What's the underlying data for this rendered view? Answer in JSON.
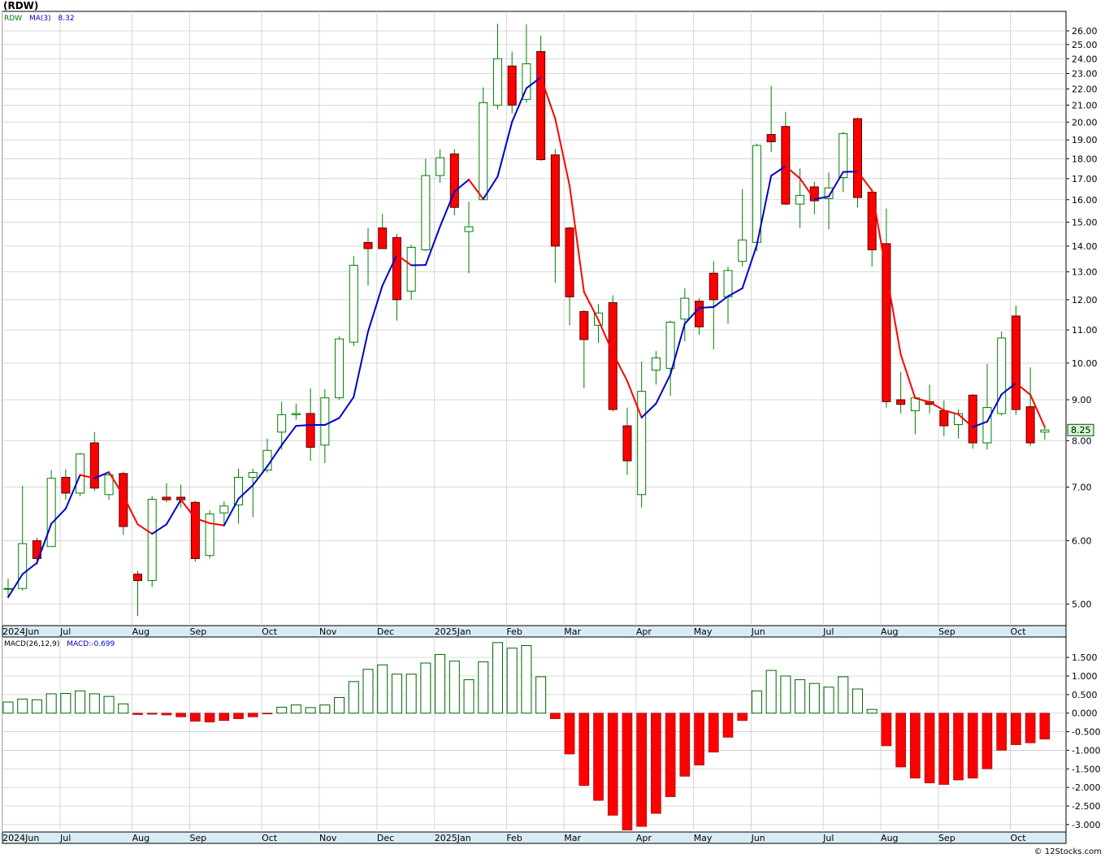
{
  "chart_data": [
    {
      "type": "candlestick",
      "title": "(RDW)",
      "legend": [
        {
          "text": "RDW",
          "color": "#008000"
        },
        {
          "text": "MA(3)",
          "color": "#0000cc"
        },
        {
          "text": "8.32",
          "color": "#0000cc"
        }
      ],
      "scale": "log",
      "ylim": [
        4.7,
        27.5
      ],
      "ticks": [
        5,
        6,
        7,
        8,
        9,
        10,
        11,
        12,
        13,
        14,
        15,
        16,
        17,
        18,
        19,
        20,
        21,
        22,
        23,
        24,
        25,
        26
      ],
      "tick_labels": [
        "5.00",
        "6.00",
        "7.00",
        "8.00",
        "9.00",
        "10.00",
        "11.00",
        "12.00",
        "13.00",
        "14.00",
        "15.00",
        "16.00",
        "17.00",
        "18.00",
        "19.00",
        "20.00",
        "21.00",
        "22.00",
        "23.00",
        "24.00",
        "25.00",
        "26.00"
      ],
      "last_price_label": "8.25",
      "grid": true,
      "candles": [
        {
          "date": "2024-06-03",
          "o": 5.22,
          "h": 5.38,
          "l": 5.12,
          "c": 5.23
        },
        {
          "date": "2024-06-10",
          "o": 5.23,
          "h": 7.02,
          "l": 5.2,
          "c": 5.95
        },
        {
          "date": "2024-06-17",
          "o": 6.0,
          "h": 6.05,
          "l": 5.6,
          "c": 5.7
        },
        {
          "date": "2024-06-24",
          "o": 5.9,
          "h": 7.35,
          "l": 5.9,
          "c": 7.18
        },
        {
          "date": "2024-07-01",
          "o": 7.2,
          "h": 7.37,
          "l": 6.75,
          "c": 6.88
        },
        {
          "date": "2024-07-08",
          "o": 6.88,
          "h": 7.72,
          "l": 6.82,
          "c": 7.7
        },
        {
          "date": "2024-07-15",
          "o": 7.95,
          "h": 8.2,
          "l": 6.92,
          "c": 6.98
        },
        {
          "date": "2024-07-22",
          "o": 6.85,
          "h": 7.3,
          "l": 6.75,
          "c": 7.25
        },
        {
          "date": "2024-07-29",
          "o": 7.28,
          "h": 7.32,
          "l": 6.1,
          "c": 6.25
        },
        {
          "date": "2024-08-05",
          "o": 5.45,
          "h": 5.5,
          "l": 4.83,
          "c": 5.35
        },
        {
          "date": "2024-08-12",
          "o": 5.35,
          "h": 6.82,
          "l": 5.25,
          "c": 6.76
        },
        {
          "date": "2024-08-19",
          "o": 6.8,
          "h": 7.08,
          "l": 6.7,
          "c": 6.75
        },
        {
          "date": "2024-08-26",
          "o": 6.8,
          "h": 7.05,
          "l": 6.6,
          "c": 6.75
        },
        {
          "date": "2024-09-02",
          "o": 6.7,
          "h": 6.73,
          "l": 5.65,
          "c": 5.7
        },
        {
          "date": "2024-09-09",
          "o": 5.75,
          "h": 6.55,
          "l": 5.7,
          "c": 6.48
        },
        {
          "date": "2024-09-16",
          "o": 6.5,
          "h": 6.72,
          "l": 6.25,
          "c": 6.63
        },
        {
          "date": "2024-09-23",
          "o": 6.65,
          "h": 7.38,
          "l": 6.3,
          "c": 7.2
        },
        {
          "date": "2024-09-30",
          "o": 7.2,
          "h": 7.38,
          "l": 6.42,
          "c": 7.3
        },
        {
          "date": "2024-10-07",
          "o": 7.35,
          "h": 8.05,
          "l": 7.3,
          "c": 7.78
        },
        {
          "date": "2024-10-14",
          "o": 8.2,
          "h": 8.95,
          "l": 7.8,
          "c": 8.62
        },
        {
          "date": "2024-10-21",
          "o": 8.62,
          "h": 8.9,
          "l": 8.5,
          "c": 8.65
        },
        {
          "date": "2024-10-28",
          "o": 8.65,
          "h": 9.3,
          "l": 7.55,
          "c": 7.85
        },
        {
          "date": "2024-11-04",
          "o": 7.9,
          "h": 9.28,
          "l": 7.5,
          "c": 9.05
        },
        {
          "date": "2024-11-11",
          "o": 9.05,
          "h": 10.8,
          "l": 9.0,
          "c": 10.72
        },
        {
          "date": "2024-11-18",
          "o": 10.62,
          "h": 13.6,
          "l": 10.5,
          "c": 13.25
        },
        {
          "date": "2024-11-25",
          "o": 14.15,
          "h": 14.75,
          "l": 12.5,
          "c": 13.9
        },
        {
          "date": "2024-12-02",
          "o": 14.75,
          "h": 15.35,
          "l": 14.0,
          "c": 13.9
        },
        {
          "date": "2024-12-09",
          "o": 14.35,
          "h": 14.5,
          "l": 11.3,
          "c": 12.0
        },
        {
          "date": "2024-12-16",
          "o": 12.3,
          "h": 14.05,
          "l": 12.0,
          "c": 13.95
        },
        {
          "date": "2024-12-23",
          "o": 13.85,
          "h": 18.0,
          "l": 13.8,
          "c": 17.15
        },
        {
          "date": "2024-12-30",
          "o": 17.15,
          "h": 18.5,
          "l": 16.8,
          "c": 18.05
        },
        {
          "date": "2025-01-06",
          "o": 18.25,
          "h": 18.5,
          "l": 15.3,
          "c": 15.65
        },
        {
          "date": "2025-01-13",
          "o": 14.6,
          "h": 15.9,
          "l": 12.95,
          "c": 14.8
        },
        {
          "date": "2025-01-20",
          "o": 16.0,
          "h": 22.1,
          "l": 16.0,
          "c": 21.15
        },
        {
          "date": "2025-01-27",
          "o": 21.0,
          "h": 26.55,
          "l": 20.75,
          "c": 24.0
        },
        {
          "date": "2025-02-03",
          "o": 23.5,
          "h": 24.5,
          "l": 20.5,
          "c": 21.0
        },
        {
          "date": "2025-02-10",
          "o": 21.35,
          "h": 26.5,
          "l": 21.15,
          "c": 23.65
        },
        {
          "date": "2025-02-17",
          "o": 24.5,
          "h": 25.65,
          "l": 17.9,
          "c": 17.95
        },
        {
          "date": "2025-02-24",
          "o": 18.2,
          "h": 18.5,
          "l": 12.6,
          "c": 14.0
        },
        {
          "date": "2025-03-03",
          "o": 14.75,
          "h": 14.8,
          "l": 11.15,
          "c": 12.1
        },
        {
          "date": "2025-03-10",
          "o": 11.6,
          "h": 11.65,
          "l": 9.3,
          "c": 10.7
        },
        {
          "date": "2025-03-17",
          "o": 11.15,
          "h": 11.85,
          "l": 10.6,
          "c": 11.55
        },
        {
          "date": "2025-03-24",
          "o": 11.9,
          "h": 12.15,
          "l": 8.7,
          "c": 8.75
        },
        {
          "date": "2025-03-31",
          "o": 8.35,
          "h": 8.8,
          "l": 7.25,
          "c": 7.55
        },
        {
          "date": "2025-04-07",
          "o": 6.85,
          "h": 10.05,
          "l": 6.6,
          "c": 9.22
        },
        {
          "date": "2025-04-14",
          "o": 9.8,
          "h": 10.35,
          "l": 9.4,
          "c": 10.15
        },
        {
          "date": "2025-04-21",
          "o": 9.85,
          "h": 11.3,
          "l": 9.1,
          "c": 11.25
        },
        {
          "date": "2025-04-28",
          "o": 11.35,
          "h": 12.4,
          "l": 10.65,
          "c": 12.05
        },
        {
          "date": "2025-05-05",
          "o": 11.95,
          "h": 12.05,
          "l": 10.85,
          "c": 11.1
        },
        {
          "date": "2025-05-12",
          "o": 12.95,
          "h": 13.4,
          "l": 10.4,
          "c": 12.0
        },
        {
          "date": "2025-05-19",
          "o": 12.1,
          "h": 13.2,
          "l": 11.2,
          "c": 13.05
        },
        {
          "date": "2025-05-26",
          "o": 13.4,
          "h": 16.5,
          "l": 13.2,
          "c": 14.25
        },
        {
          "date": "2025-06-02",
          "o": 14.15,
          "h": 18.8,
          "l": 13.8,
          "c": 18.7
        },
        {
          "date": "2025-06-09",
          "o": 19.3,
          "h": 22.2,
          "l": 18.35,
          "c": 18.9
        },
        {
          "date": "2025-06-16",
          "o": 19.75,
          "h": 20.6,
          "l": 15.75,
          "c": 15.8
        },
        {
          "date": "2025-06-23",
          "o": 15.8,
          "h": 17.5,
          "l": 14.75,
          "c": 16.2
        },
        {
          "date": "2025-06-30",
          "o": 16.6,
          "h": 16.85,
          "l": 15.35,
          "c": 15.95
        },
        {
          "date": "2025-07-07",
          "o": 16.05,
          "h": 17.3,
          "l": 14.7,
          "c": 16.55
        },
        {
          "date": "2025-07-14",
          "o": 17.05,
          "h": 19.45,
          "l": 16.35,
          "c": 19.35
        },
        {
          "date": "2025-07-21",
          "o": 20.2,
          "h": 20.25,
          "l": 15.65,
          "c": 16.1
        },
        {
          "date": "2025-07-28",
          "o": 16.35,
          "h": 16.5,
          "l": 13.2,
          "c": 13.85
        },
        {
          "date": "2025-08-04",
          "o": 14.1,
          "h": 15.6,
          "l": 8.8,
          "c": 8.95
        },
        {
          "date": "2025-08-11",
          "o": 9.0,
          "h": 9.75,
          "l": 8.65,
          "c": 8.88
        },
        {
          "date": "2025-08-18",
          "o": 8.72,
          "h": 9.1,
          "l": 8.15,
          "c": 9.05
        },
        {
          "date": "2025-08-25",
          "o": 8.95,
          "h": 9.4,
          "l": 8.65,
          "c": 8.88
        },
        {
          "date": "2025-09-01",
          "o": 8.72,
          "h": 8.98,
          "l": 8.1,
          "c": 8.35
        },
        {
          "date": "2025-09-08",
          "o": 8.38,
          "h": 8.75,
          "l": 8.05,
          "c": 8.65
        },
        {
          "date": "2025-09-15",
          "o": 9.12,
          "h": 9.15,
          "l": 7.82,
          "c": 7.95
        },
        {
          "date": "2025-09-22",
          "o": 7.95,
          "h": 9.98,
          "l": 7.8,
          "c": 8.8
        },
        {
          "date": "2025-09-29",
          "o": 8.65,
          "h": 10.95,
          "l": 8.6,
          "c": 10.75
        },
        {
          "date": "2025-10-06",
          "o": 11.45,
          "h": 11.8,
          "l": 8.62,
          "c": 8.75
        },
        {
          "date": "2025-10-13",
          "o": 8.82,
          "h": 9.88,
          "l": 7.88,
          "c": 7.95
        },
        {
          "date": "2025-10-20",
          "o": 8.2,
          "h": 8.3,
          "l": 8.02,
          "c": 8.25
        }
      ],
      "ma3": [
        5.1,
        5.45,
        5.63,
        6.3,
        6.58,
        7.25,
        7.18,
        7.31,
        6.83,
        6.29,
        6.12,
        6.29,
        6.75,
        6.4,
        6.31,
        6.27,
        6.77,
        7.04,
        7.43,
        7.9,
        8.35,
        8.37,
        8.37,
        8.54,
        9.07,
        10.95,
        12.5,
        13.65,
        13.25,
        13.26,
        14.81,
        16.38,
        16.95,
        16.03,
        17.1,
        20.01,
        22.05,
        22.75,
        20.2,
        16.65,
        12.27,
        11.32,
        10.3,
        9.5,
        8.55,
        8.9,
        9.68,
        11.2,
        11.72,
        11.75,
        12.12,
        12.4,
        14.04,
        17.14,
        17.62,
        17.01,
        16.02,
        16.15,
        17.33,
        17.35,
        16.43,
        12.95,
        10.25,
        9.04,
        8.94,
        8.73,
        8.63,
        8.32,
        8.45,
        9.14,
        9.44,
        9.13,
        8.32
      ],
      "month_labels": [
        {
          "label": "2024Jun",
          "index": 0
        },
        {
          "label": "Jul",
          "index": 4
        },
        {
          "label": "Aug",
          "index": 9
        },
        {
          "label": "Sep",
          "index": 13
        },
        {
          "label": "Oct",
          "index": 18
        },
        {
          "label": "Nov",
          "index": 22
        },
        {
          "label": "Dec",
          "index": 26
        },
        {
          "label": "2025Jan",
          "index": 30
        },
        {
          "label": "Feb",
          "index": 35
        },
        {
          "label": "Mar",
          "index": 39
        },
        {
          "label": "Apr",
          "index": 44
        },
        {
          "label": "May",
          "index": 48
        },
        {
          "label": "Jun",
          "index": 52
        },
        {
          "label": "Jul",
          "index": 57
        },
        {
          "label": "Aug",
          "index": 61
        },
        {
          "label": "Sep",
          "index": 65
        },
        {
          "label": "Oct",
          "index": 70
        }
      ],
      "colors": {
        "up_wick": "#008000",
        "down_fill": "#ff0000",
        "ma_up": "#0000cc",
        "ma_down": "#ff0000",
        "grid": "#cccccc",
        "axis": "#000000",
        "last_label_bg": "#ccffcc"
      }
    },
    {
      "type": "bar",
      "legend": [
        {
          "text": "MACD(26,12,9)",
          "color": "#000000"
        },
        {
          "text": "MACD:-0.699",
          "color": "#0000cc"
        }
      ],
      "ylim": [
        -3.2,
        2.05
      ],
      "ticks": [
        1.5,
        1.0,
        0.5,
        0,
        -0.5,
        -1.0,
        -1.5,
        -2.0,
        -2.5,
        -3.0
      ],
      "tick_labels": [
        "1.500",
        "1.000",
        "0.500",
        "0.000",
        "-0.500",
        "-1.000",
        "-1.500",
        "-2.000",
        "-2.500",
        "-3.000"
      ],
      "values": [
        0.3,
        0.38,
        0.36,
        0.52,
        0.53,
        0.6,
        0.52,
        0.45,
        0.25,
        -0.04,
        -0.03,
        -0.05,
        -0.1,
        -0.22,
        -0.24,
        -0.2,
        -0.15,
        -0.1,
        -0.01,
        0.16,
        0.22,
        0.15,
        0.22,
        0.42,
        0.85,
        1.18,
        1.3,
        1.05,
        1.05,
        1.35,
        1.58,
        1.4,
        0.9,
        1.38,
        1.9,
        1.75,
        1.82,
        0.98,
        -0.15,
        -1.1,
        -1.95,
        -2.35,
        -2.75,
        -3.15,
        -3.05,
        -2.7,
        -2.25,
        -1.7,
        -1.4,
        -1.05,
        -0.65,
        -0.2,
        0.6,
        1.15,
        1.0,
        0.9,
        0.8,
        0.7,
        0.98,
        0.65,
        0.1,
        -0.88,
        -1.45,
        -1.75,
        -1.88,
        -1.92,
        -1.8,
        -1.75,
        -1.5,
        -1.0,
        -0.85,
        -0.8,
        -0.7
      ],
      "colors": {
        "pos": "#006400",
        "neg": "#ff0000"
      }
    }
  ],
  "footer": {
    "credit": "© 12Stocks.com"
  }
}
